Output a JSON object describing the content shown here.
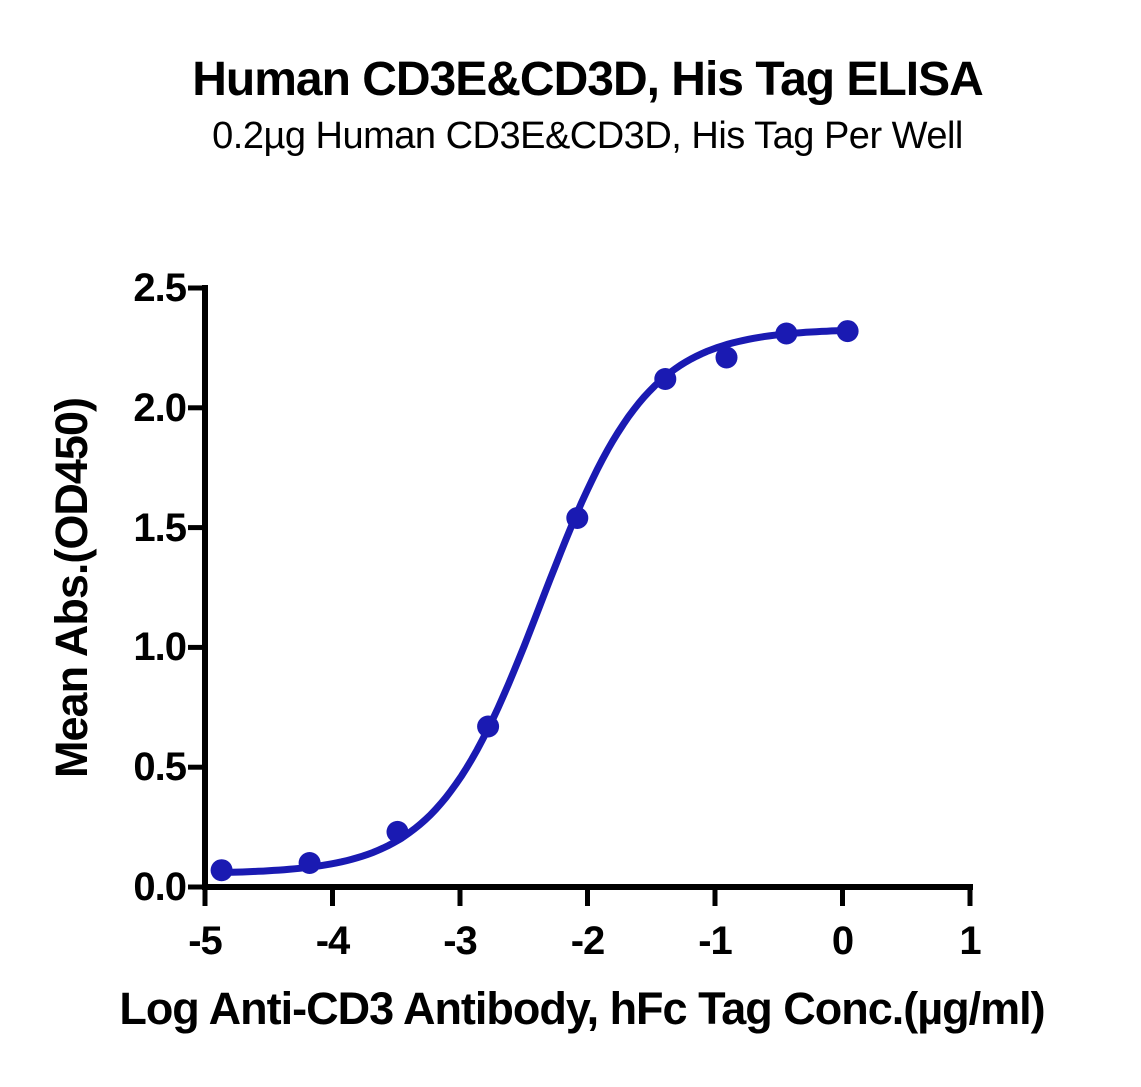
{
  "page": {
    "background": "#ffffff",
    "text_color": "#000000"
  },
  "chart_data": {
    "type": "line",
    "title": "Human CD3E&CD3D, His Tag ELISA",
    "subtitle": "0.2µg Human CD3E&CD3D, His Tag Per Well",
    "xlabel": "Log Anti-CD3 Antibody, hFc Tag Conc.(µg/ml)",
    "ylabel": "Mean Abs.(OD450)",
    "xlim": [
      -5,
      1
    ],
    "ylim": [
      0,
      2.5
    ],
    "x_ticks": [
      -5,
      -4,
      -3,
      -2,
      -1,
      0,
      1
    ],
    "x_tick_labels": [
      "-5",
      "-4",
      "-3",
      "-2",
      "-1",
      "0",
      "1"
    ],
    "y_ticks": [
      0,
      0.5,
      1.0,
      1.5,
      2.0,
      2.5
    ],
    "y_tick_labels": [
      "0.0",
      "0.5",
      "1.0",
      "1.5",
      "2.0",
      "2.5"
    ],
    "grid": false,
    "legend": false,
    "axis_color": "#000000",
    "series": [
      {
        "name": "Anti-CD3 Antibody, hFc Tag",
        "color": "#1a1ab2",
        "marker": "circle",
        "points": [
          {
            "x": -4.87,
            "y": 0.07
          },
          {
            "x": -4.18,
            "y": 0.1
          },
          {
            "x": -3.49,
            "y": 0.23
          },
          {
            "x": -2.78,
            "y": 0.67
          },
          {
            "x": -2.08,
            "y": 1.54
          },
          {
            "x": -1.39,
            "y": 2.12
          },
          {
            "x": -0.91,
            "y": 2.21
          },
          {
            "x": -0.44,
            "y": 2.31
          },
          {
            "x": 0.04,
            "y": 2.32
          }
        ],
        "fit_curve": {
          "model": "4PL",
          "bottom": 0.055,
          "top": 2.33,
          "log_ec50": -2.36,
          "hill": 1.05,
          "x_start": -4.87,
          "x_end": 0.04
        }
      }
    ]
  }
}
